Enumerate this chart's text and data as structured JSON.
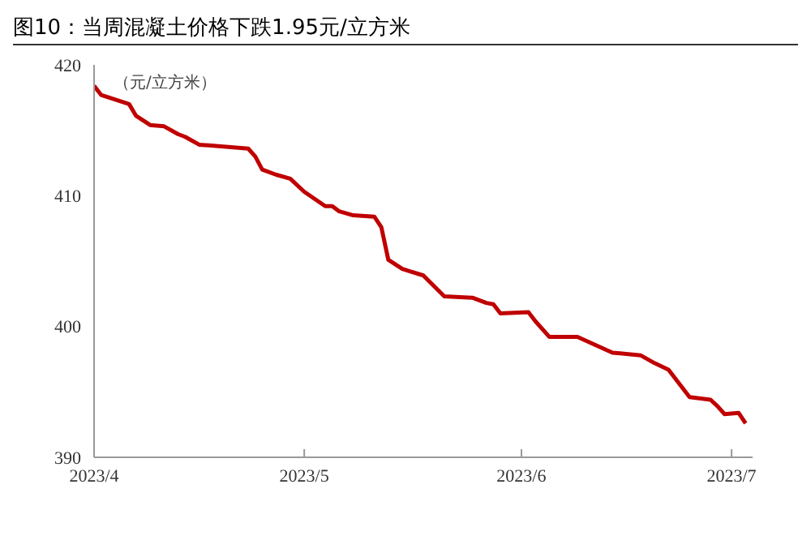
{
  "chart_data": {
    "type": "line",
    "title": "图10：当周混凝土价格下跌1.95元/立方米",
    "ylabel": "（元/立方米）",
    "x": [
      "2023-04-01",
      "2023-04-02",
      "2023-04-06",
      "2023-04-07",
      "2023-04-09",
      "2023-04-11",
      "2023-04-13",
      "2023-04-14",
      "2023-04-16",
      "2023-04-23",
      "2023-04-24",
      "2023-04-25",
      "2023-04-27",
      "2023-04-29",
      "2023-05-01",
      "2023-05-04",
      "2023-05-05",
      "2023-05-06",
      "2023-05-08",
      "2023-05-11",
      "2023-05-12",
      "2023-05-13",
      "2023-05-15",
      "2023-05-18",
      "2023-05-21",
      "2023-05-25",
      "2023-05-27",
      "2023-05-28",
      "2023-05-29",
      "2023-06-02",
      "2023-06-03",
      "2023-06-05",
      "2023-06-09",
      "2023-06-14",
      "2023-06-18",
      "2023-06-20",
      "2023-06-22",
      "2023-06-25",
      "2023-06-28",
      "2023-06-29",
      "2023-06-30",
      "2023-07-02",
      "2023-07-03"
    ],
    "series": [
      {
        "color": "#c00000",
        "values": [
          418.4,
          417.7,
          417.0,
          416.1,
          415.4,
          415.3,
          414.7,
          414.5,
          413.9,
          413.6,
          413.0,
          412.0,
          411.6,
          411.3,
          410.3,
          409.2,
          409.2,
          408.8,
          408.5,
          408.4,
          407.6,
          405.1,
          404.4,
          403.9,
          402.3,
          402.2,
          401.8,
          401.7,
          401.0,
          401.1,
          400.4,
          399.2,
          399.2,
          398.0,
          397.8,
          397.2,
          396.7,
          394.6,
          394.4,
          393.9,
          393.3,
          393.4,
          392.6
        ]
      }
    ],
    "xlim": [
      "2023-04-01",
      "2023-07-04"
    ],
    "xticks": [
      {
        "value": "2023-04-01",
        "label": "2023/4"
      },
      {
        "value": "2023-05-01",
        "label": "2023/5"
      },
      {
        "value": "2023-06-01",
        "label": "2023/6"
      },
      {
        "value": "2023-07-01",
        "label": "2023/7"
      }
    ],
    "ylim": [
      390,
      420
    ],
    "yticks": [
      390,
      400,
      410,
      420
    ],
    "grid": false,
    "legend": false,
    "marker": "none",
    "line_style": "solid"
  }
}
